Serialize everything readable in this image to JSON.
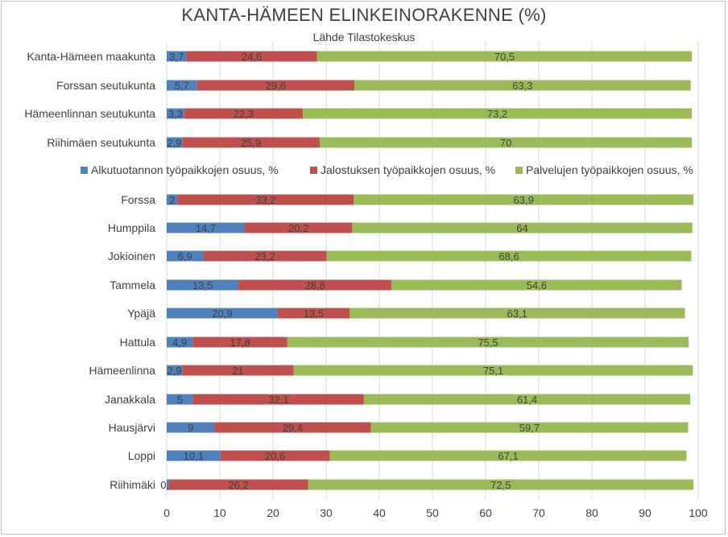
{
  "chart_data": {
    "type": "bar",
    "orientation": "horizontal",
    "stacked": true,
    "title": "KANTA-HÄMEEN ELINKEINORAKENNE (%)",
    "subtitle": "Lähde Tilastokeskus",
    "xlim": [
      0,
      100
    ],
    "xticks": [
      0,
      10,
      20,
      30,
      40,
      50,
      60,
      70,
      80,
      90,
      100
    ],
    "grid": "vertical",
    "legend_position": "middle",
    "legend": [
      {
        "name": "Alkutuotannon työpaikkojen osuus, %",
        "color": "#4f81bd"
      },
      {
        "name": "Jalostuksen työpaikkojen osuus, %",
        "color": "#c0504d"
      },
      {
        "name": "Palvelujen työpaikkojen osuus, %",
        "color": "#9bbb59"
      }
    ],
    "groups": [
      {
        "rows": [
          {
            "category": "Kanta-Hämeen maakunta",
            "values": [
              "3,7",
              "24,6",
              "70,5"
            ]
          },
          {
            "category": "Forssan seutukunta",
            "values": [
              "5,7",
              "29,6",
              "63,3"
            ]
          },
          {
            "category": "Hämeenlinnan seutukunta",
            "values": [
              "3,3",
              "22,3",
              "73,2"
            ]
          },
          {
            "category": "Riihimäen seutukunta",
            "values": [
              "2,9",
              "25,9",
              "70"
            ]
          }
        ]
      },
      {
        "rows": [
          {
            "category": "Forssa",
            "values": [
              "2",
              "33,2",
              "63,9"
            ]
          },
          {
            "category": "Humppila",
            "values": [
              "14,7",
              "20,2",
              "64"
            ]
          },
          {
            "category": "Jokioinen",
            "values": [
              "6,9",
              "23,2",
              "68,6"
            ]
          },
          {
            "category": "Tammela",
            "values": [
              "13,5",
              "28,8",
              "54,6"
            ]
          },
          {
            "category": "Ypäjä",
            "values": [
              "20,9",
              "13,5",
              "63,1"
            ]
          },
          {
            "category": "Hattula",
            "values": [
              "4,9",
              "17,8",
              "75,5"
            ]
          },
          {
            "category": "Hämeenlinna",
            "values": [
              "2,9",
              "21",
              "75,1"
            ]
          },
          {
            "category": "Janakkala",
            "values": [
              "5",
              "32,1",
              "61,4"
            ]
          },
          {
            "category": "Hausjärvi",
            "values": [
              "9",
              "29,4",
              "59,7"
            ]
          },
          {
            "category": "Loppi",
            "values": [
              "10,1",
              "20,6",
              "67,1"
            ]
          },
          {
            "category": "Riihimäki",
            "values": [
              "0,4",
              "26,2",
              "72,5"
            ]
          }
        ]
      }
    ]
  }
}
